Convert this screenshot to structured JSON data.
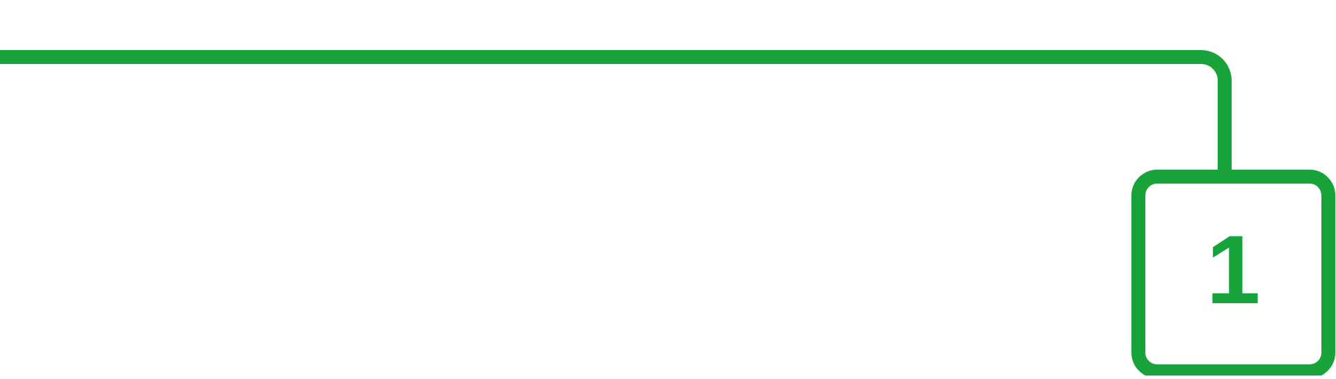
{
  "colors": {
    "accent": "#18a23a",
    "background": "#ffffff"
  },
  "step": {
    "number": "1"
  }
}
